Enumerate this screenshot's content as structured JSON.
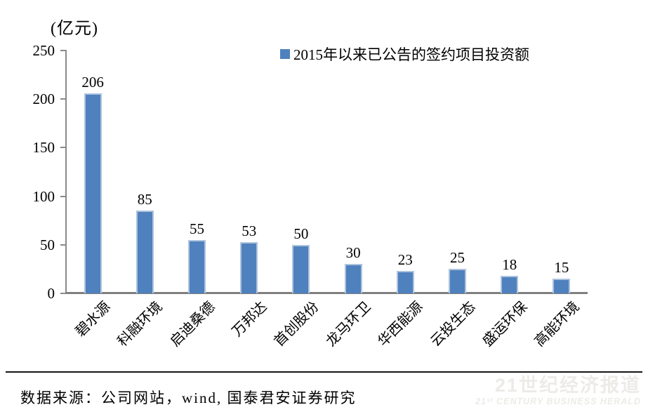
{
  "chart_data": {
    "type": "bar",
    "categories": [
      "碧水源",
      "科融环境",
      "启迪桑德",
      "万邦达",
      "首创股份",
      "龙马环卫",
      "华西能源",
      "云投生态",
      "盛运环保",
      "高能环境"
    ],
    "values": [
      206,
      85,
      55,
      53,
      50,
      30,
      23,
      25,
      18,
      15
    ],
    "series_name": "2015年以来已公告的签约项目投资额",
    "title": "",
    "xlabel": "",
    "ylabel": "(亿元)",
    "ylim": [
      0,
      250
    ],
    "yticks": [
      0,
      50,
      100,
      150,
      200,
      250
    ],
    "grid": false,
    "legend_position": "top-center",
    "bar_color": "#4e81bd",
    "bar_border_color": "#aec3de",
    "axis_color": "#8a8a8a",
    "value_label_color": "#000000"
  },
  "footer": {
    "source_text": "数据来源：公司网站，wind, 国泰君安证券研究",
    "watermark_line1": "21世纪经济报道",
    "watermark_line2": "21ˢᵗ CENTURY BUSINESS HERALD"
  }
}
